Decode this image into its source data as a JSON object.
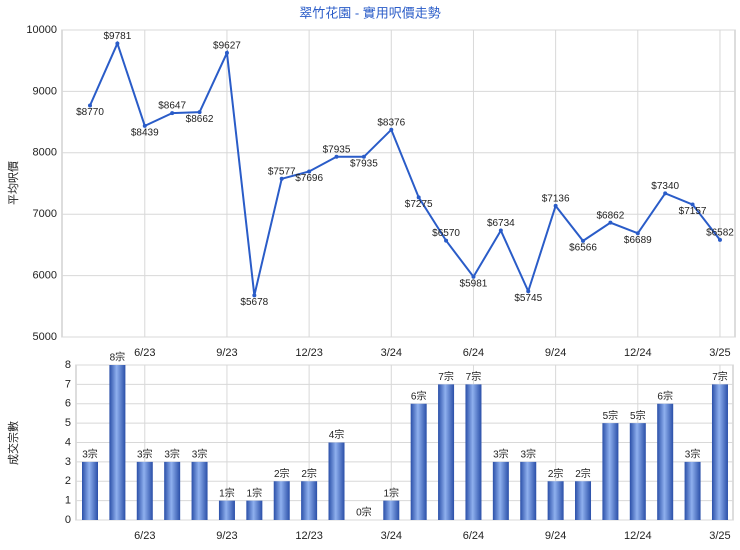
{
  "chart_data": [
    {
      "type": "line",
      "title": "翠竹花園 - 實用呎價走勢",
      "y_label": "平均呎價",
      "color": "#2a5cc8",
      "categories": [
        null,
        null,
        "6/23",
        null,
        null,
        "9/23",
        null,
        null,
        "12/23",
        null,
        null,
        "3/24",
        null,
        null,
        "6/24",
        null,
        null,
        "9/24",
        null,
        null,
        "12/24",
        null,
        null,
        "3/25"
      ],
      "values": [
        8770,
        9781,
        8439,
        8647,
        8662,
        9627,
        5678,
        7577,
        7696,
        7935,
        7935,
        8376,
        7275,
        6570,
        5981,
        6734,
        5745,
        7136,
        6566,
        6862,
        6689,
        7340,
        7157,
        6582
      ],
      "value_labels": [
        "$8770",
        "$9781",
        "$8439",
        "$8647",
        "$8662",
        "$9627",
        "$5678",
        "$7577",
        "$7696",
        "$7935",
        "$7935",
        "$8376",
        "$7275",
        "$6570",
        "$5981",
        "$6734",
        "$5745",
        "$7136",
        "$6566",
        "$6862",
        "$6689",
        "$7340",
        "$7157",
        "$6582"
      ],
      "ylim": [
        5000,
        10000
      ],
      "yticks": [
        5000,
        6000,
        7000,
        8000,
        9000,
        10000
      ],
      "grid": true
    },
    {
      "type": "bar",
      "y_label": "成交宗數",
      "color": "#3f6fd0",
      "categories": [
        null,
        null,
        "6/23",
        null,
        null,
        "9/23",
        null,
        null,
        "12/23",
        null,
        null,
        "3/24",
        null,
        null,
        "6/24",
        null,
        null,
        "9/24",
        null,
        null,
        "12/24",
        null,
        null,
        "3/25"
      ],
      "values": [
        3,
        8,
        3,
        3,
        3,
        1,
        1,
        2,
        2,
        4,
        0,
        1,
        6,
        7,
        7,
        3,
        3,
        2,
        2,
        5,
        5,
        6,
        3,
        7
      ],
      "value_labels": [
        "3宗",
        "8宗",
        "3宗",
        "3宗",
        "3宗",
        "1宗",
        "1宗",
        "2宗",
        "2宗",
        "4宗",
        "0宗",
        "1宗",
        "6宗",
        "7宗",
        "7宗",
        "3宗",
        "3宗",
        "2宗",
        "2宗",
        "5宗",
        "5宗",
        "6宗",
        "3宗",
        "7宗"
      ],
      "ylim": [
        0,
        8
      ],
      "yticks": [
        0,
        1,
        2,
        3,
        4,
        5,
        6,
        7,
        8
      ],
      "grid": true
    }
  ]
}
